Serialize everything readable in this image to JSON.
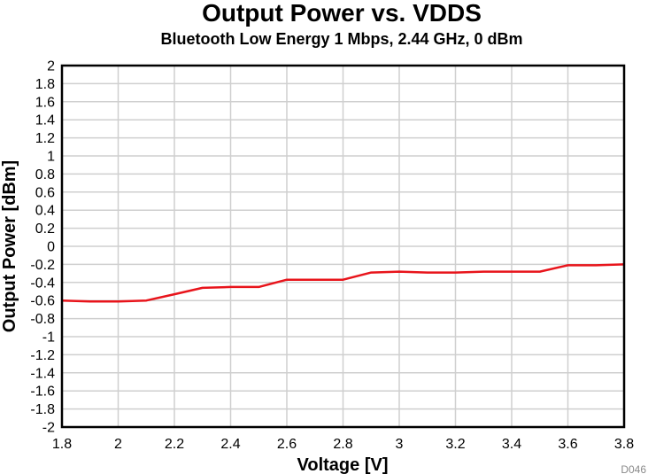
{
  "chart_data": {
    "type": "line",
    "title": "Output Power vs. VDDS",
    "subtitle": "Bluetooth Low Energy 1 Mbps, 2.44 GHz, 0 dBm",
    "xlabel": "Voltage [V]",
    "ylabel": "Output Power [dBm]",
    "xlim": [
      1.8,
      3.8
    ],
    "ylim": [
      -2,
      2
    ],
    "xticks": [
      "1.8",
      "2",
      "2.2",
      "2.4",
      "2.6",
      "2.8",
      "3",
      "3.2",
      "3.4",
      "3.6",
      "3.8"
    ],
    "yticks": [
      "2",
      "1.8",
      "1.6",
      "1.4",
      "1.2",
      "1",
      "0.8",
      "0.6",
      "0.4",
      "0.2",
      "0",
      "-0.2",
      "-0.4",
      "-0.6",
      "-0.8",
      "-1",
      "-1.2",
      "-1.4",
      "-1.6",
      "-1.8",
      "-2"
    ],
    "grid": true,
    "footnote": "D046",
    "series": [
      {
        "color": "#e8141b",
        "x": [
          1.8,
          1.9,
          2.0,
          2.1,
          2.2,
          2.3,
          2.4,
          2.5,
          2.6,
          2.7,
          2.8,
          2.9,
          3.0,
          3.1,
          3.2,
          3.3,
          3.4,
          3.5,
          3.6,
          3.7,
          3.8
        ],
        "y": [
          -0.6,
          -0.61,
          -0.61,
          -0.6,
          -0.53,
          -0.46,
          -0.45,
          -0.45,
          -0.37,
          -0.37,
          -0.37,
          -0.29,
          -0.28,
          -0.29,
          -0.29,
          -0.28,
          -0.28,
          -0.28,
          -0.21,
          -0.21,
          -0.2
        ]
      }
    ]
  }
}
